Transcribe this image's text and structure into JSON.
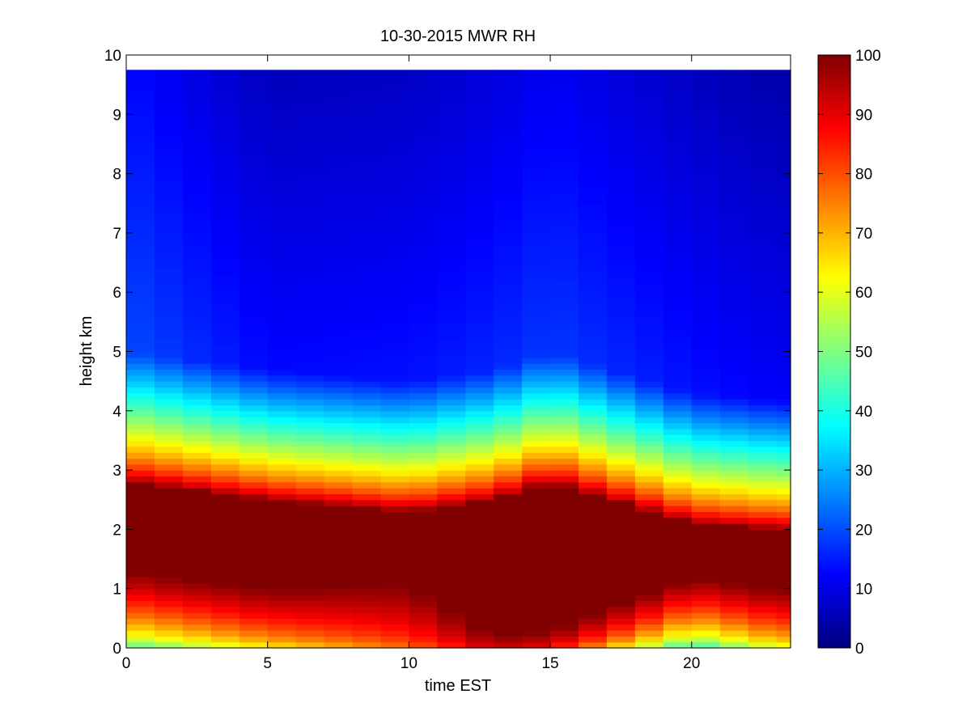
{
  "figure": {
    "background": "#ffffff"
  },
  "chart_data": {
    "type": "heatmap",
    "title": "10-30-2015 MWR RH",
    "xlabel": "time EST",
    "ylabel": "height km",
    "xlim": [
      0,
      23.5
    ],
    "ylim": [
      0,
      10
    ],
    "xticks": [
      0,
      5,
      10,
      15,
      20
    ],
    "yticks": [
      0,
      1,
      2,
      3,
      4,
      5,
      6,
      7,
      8,
      9,
      10
    ],
    "colormap": "jet",
    "clim": [
      0,
      100
    ],
    "colorbar_ticks": [
      0,
      10,
      20,
      30,
      40,
      50,
      60,
      70,
      80,
      90,
      100
    ],
    "grid": false,
    "time_step_hours": 1,
    "data_height_top_km": 9.75,
    "key_profiles": [
      {
        "time": 0,
        "surface_rh": 40,
        "low_moist_top_km": 1.3,
        "saturated_top_km": 2.8,
        "upper_rh": 12
      },
      {
        "time": 5,
        "surface_rh": 60,
        "low_moist_top_km": 1.0,
        "saturated_top_km": 2.5,
        "upper_rh": 5
      },
      {
        "time": 10,
        "surface_rh": 75,
        "low_moist_top_km": 1.1,
        "saturated_top_km": 2.3,
        "upper_rh": 6
      },
      {
        "time": 13,
        "surface_rh": 90,
        "low_moist_top_km": 0.2,
        "saturated_top_km": 2.5,
        "upper_rh": 8
      },
      {
        "time": 15,
        "surface_rh": 85,
        "low_moist_top_km": 0.3,
        "saturated_top_km": 2.8,
        "upper_rh": 10
      },
      {
        "time": 20,
        "surface_rh": 35,
        "low_moist_top_km": 1.2,
        "saturated_top_km": 2.1,
        "upper_rh": 6
      },
      {
        "time": 23,
        "surface_rh": 55,
        "low_moist_top_km": 1.0,
        "saturated_top_km": 2.0,
        "upper_rh": 4
      }
    ]
  }
}
